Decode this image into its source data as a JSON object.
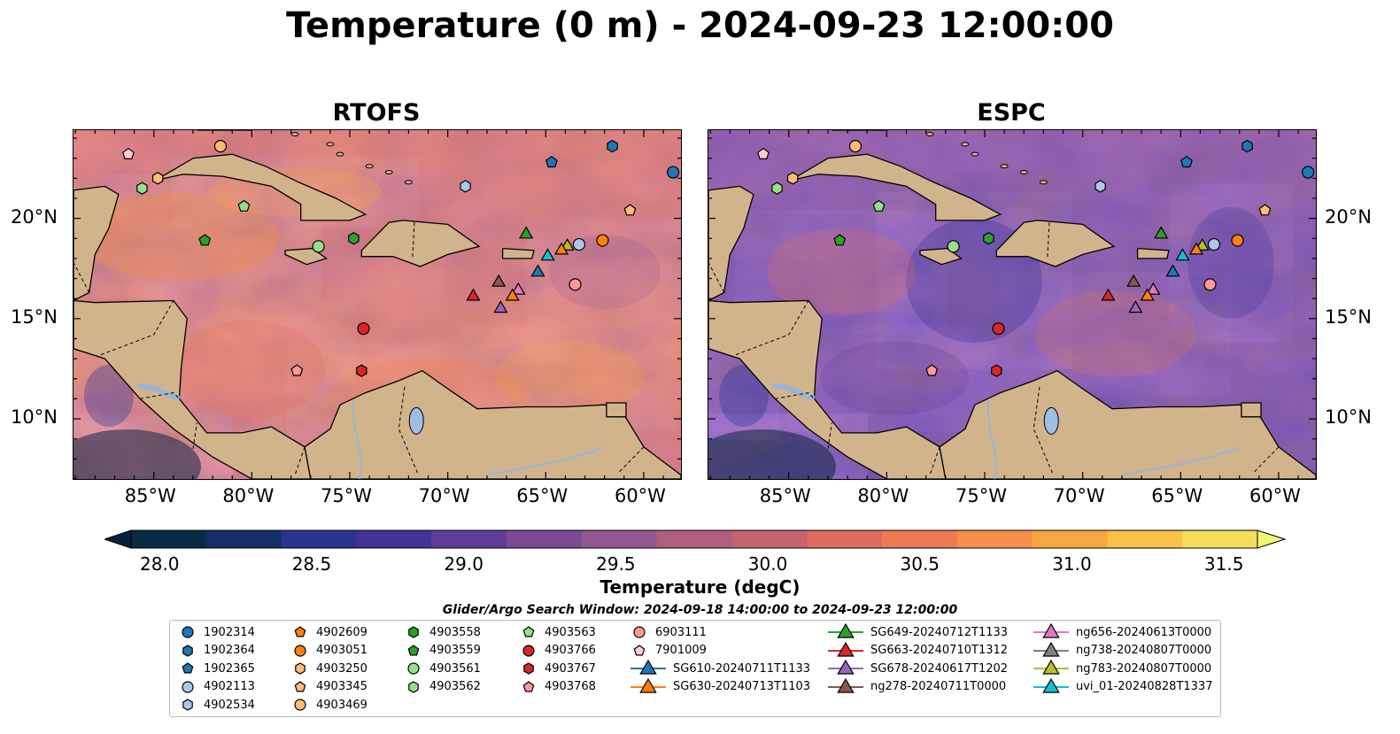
{
  "title": "Temperature (0 m) - 2024-09-23 12:00:00",
  "panels": [
    {
      "name": "RTOFS",
      "variant": "warm"
    },
    {
      "name": "ESPC",
      "variant": "cool"
    }
  ],
  "lon_labels": [
    "85°W",
    "80°W",
    "75°W",
    "70°W",
    "65°W",
    "60°W"
  ],
  "lat_labels": [
    "20°N",
    "15°N",
    "10°N"
  ],
  "colorbar": {
    "colors": [
      "#0a2a43",
      "#162e63",
      "#2a3390",
      "#41339a",
      "#5c3e98",
      "#7a4a94",
      "#955790",
      "#ae5f82",
      "#c6636f",
      "#dc6c5f",
      "#ec7a52",
      "#f4904a",
      "#f8a641",
      "#f9c147",
      "#f4dd5a"
    ],
    "min_extend_color": "#05203a",
    "max_extend_color": "#f0f871",
    "tick_labels": [
      "28.0",
      "28.5",
      "29.0",
      "29.5",
      "30.0",
      "30.5",
      "31.0",
      "31.5"
    ],
    "label": "Temperature (degC)"
  },
  "legend_title": "Glider/Argo Search Window: 2024-09-18 14:00:00 to 2024-09-23 12:00:00",
  "legend_items": [
    {
      "label": "1902314",
      "marker": "circle",
      "color": "#1f77b4"
    },
    {
      "label": "1902364",
      "marker": "hexagon",
      "color": "#1f77b4"
    },
    {
      "label": "1902365",
      "marker": "pentagon",
      "color": "#1f77b4"
    },
    {
      "label": "4902113",
      "marker": "circle",
      "color": "#aec7e8"
    },
    {
      "label": "4902534",
      "marker": "hexagon",
      "color": "#aec7e8"
    },
    {
      "label": "4902609",
      "marker": "pentagon",
      "color": "#ff7f0e"
    },
    {
      "label": "4903051",
      "marker": "circle",
      "color": "#ff7f0e"
    },
    {
      "label": "4903250",
      "marker": "hexagon",
      "color": "#ffbb78"
    },
    {
      "label": "4903345",
      "marker": "pentagon",
      "color": "#ffbb78"
    },
    {
      "label": "4903469",
      "marker": "circle",
      "color": "#ffbb78"
    },
    {
      "label": "4903558",
      "marker": "hexagon",
      "color": "#2ca02c"
    },
    {
      "label": "4903559",
      "marker": "pentagon",
      "color": "#2ca02c"
    },
    {
      "label": "4903561",
      "marker": "circle",
      "color": "#98df8a"
    },
    {
      "label": "4903562",
      "marker": "hexagon",
      "color": "#98df8a"
    },
    {
      "label": "4903563",
      "marker": "pentagon",
      "color": "#98df8a"
    },
    {
      "label": "4903766",
      "marker": "circle",
      "color": "#d62728"
    },
    {
      "label": "4903767",
      "marker": "hexagon",
      "color": "#d62728"
    },
    {
      "label": "4903768",
      "marker": "pentagon",
      "color": "#ff9896"
    },
    {
      "label": "6903111",
      "marker": "circle",
      "color": "#ff9896"
    },
    {
      "label": "7901009",
      "marker": "pentagon",
      "color": "#ffcccc"
    },
    {
      "label": "SG610-20240711T1133",
      "marker": "triangle",
      "color": "#1f77b4"
    },
    {
      "label": "SG630-20240713T1103",
      "marker": "triangle",
      "color": "#ff7f0e"
    },
    {
      "label": "SG649-20240712T1133",
      "marker": "triangle",
      "color": "#2ca02c"
    },
    {
      "label": "SG663-20240710T1312",
      "marker": "triangle",
      "color": "#d62728"
    },
    {
      "label": "SG678-20240617T1202",
      "marker": "triangle",
      "color": "#9467bd"
    },
    {
      "label": "ng278-20240711T0000",
      "marker": "triangle",
      "color": "#8c564b"
    },
    {
      "label": "ng656-20240613T0000",
      "marker": "triangle",
      "color": "#e377c2"
    },
    {
      "label": "ng738-20240807T0000",
      "marker": "triangle",
      "color": "#7f7f7f"
    },
    {
      "label": "ng783-20240807T0000",
      "marker": "triangle",
      "color": "#bcbd22"
    },
    {
      "label": "uvi_01-20240828T1337",
      "marker": "triangle",
      "color": "#17becf"
    }
  ],
  "map_points": [
    {
      "lon": -86.3,
      "lat": 23.2,
      "marker": "pentagon",
      "color": "#ffcccc"
    },
    {
      "lon": -81.6,
      "lat": 23.6,
      "marker": "circle",
      "color": "#ffbb78"
    },
    {
      "lon": -85.6,
      "lat": 21.5,
      "marker": "hexagon",
      "color": "#98df8a"
    },
    {
      "lon": -84.8,
      "lat": 22.0,
      "marker": "hexagon",
      "color": "#ffbb78"
    },
    {
      "lon": -80.4,
      "lat": 20.6,
      "marker": "pentagon",
      "color": "#98df8a"
    },
    {
      "lon": -82.4,
      "lat": 18.9,
      "marker": "pentagon",
      "color": "#2ca02c"
    },
    {
      "lon": -76.6,
      "lat": 18.6,
      "marker": "circle",
      "color": "#98df8a"
    },
    {
      "lon": -74.8,
      "lat": 19.0,
      "marker": "hexagon",
      "color": "#2ca02c"
    },
    {
      "lon": -69.1,
      "lat": 21.6,
      "marker": "hexagon",
      "color": "#aec7e8"
    },
    {
      "lon": -64.7,
      "lat": 22.8,
      "marker": "pentagon",
      "color": "#1f77b4"
    },
    {
      "lon": -61.6,
      "lat": 23.6,
      "marker": "hexagon",
      "color": "#1f77b4"
    },
    {
      "lon": -58.5,
      "lat": 22.3,
      "marker": "circle",
      "color": "#1f77b4"
    },
    {
      "lon": -60.7,
      "lat": 20.4,
      "marker": "pentagon",
      "color": "#ffbb78"
    },
    {
      "lon": -62.1,
      "lat": 18.9,
      "marker": "circle",
      "color": "#ff7f0e"
    },
    {
      "lon": -63.3,
      "lat": 18.7,
      "marker": "circle",
      "color": "#aec7e8"
    },
    {
      "lon": -63.5,
      "lat": 16.7,
      "marker": "circle",
      "color": "#ff9896"
    },
    {
      "lon": -74.3,
      "lat": 14.5,
      "marker": "circle",
      "color": "#d62728"
    },
    {
      "lon": -77.7,
      "lat": 12.4,
      "marker": "pentagon",
      "color": "#ff9896"
    },
    {
      "lon": -74.4,
      "lat": 12.4,
      "marker": "hexagon",
      "color": "#d62728"
    },
    {
      "lon": -66.0,
      "lat": 19.2,
      "marker": "triangle",
      "color": "#2ca02c"
    },
    {
      "lon": -63.9,
      "lat": 18.6,
      "marker": "triangle",
      "color": "#bcbd22"
    },
    {
      "lon": -64.2,
      "lat": 18.4,
      "marker": "triangle",
      "color": "#ff7f0e"
    },
    {
      "lon": -64.9,
      "lat": 18.1,
      "marker": "triangle",
      "color": "#17becf"
    },
    {
      "lon": -65.4,
      "lat": 17.3,
      "marker": "triangle",
      "color": "#1f77b4"
    },
    {
      "lon": -68.7,
      "lat": 16.1,
      "marker": "triangle",
      "color": "#d62728"
    },
    {
      "lon": -67.4,
      "lat": 16.8,
      "marker": "triangle",
      "color": "#8c564b"
    },
    {
      "lon": -66.4,
      "lat": 16.4,
      "marker": "triangle",
      "color": "#e377c2"
    },
    {
      "lon": -66.7,
      "lat": 16.1,
      "marker": "triangle",
      "color": "#ff7f0e"
    },
    {
      "lon": -67.3,
      "lat": 15.5,
      "marker": "triangle",
      "color": "#9467bd"
    }
  ]
}
